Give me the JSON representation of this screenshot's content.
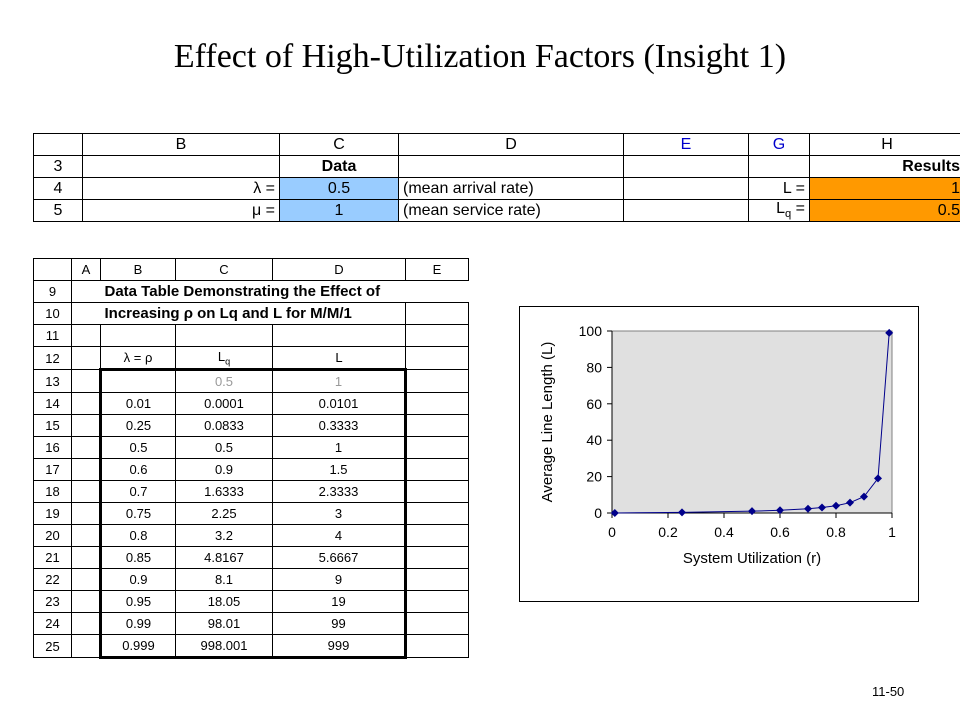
{
  "slide": {
    "title": "Effect of High-Utilization Factors (Insight 1)",
    "number": "11-50"
  },
  "sheet1": {
    "columns": [
      "",
      "B",
      "C",
      "D",
      "E",
      "G",
      "H"
    ],
    "row3": {
      "rn": "3",
      "c": "Data",
      "h": "Results"
    },
    "row4": {
      "rn": "4",
      "b": "λ =",
      "c": "0.5",
      "d": "(mean arrival rate)",
      "g": "L =",
      "h": "1"
    },
    "row5": {
      "rn": "5",
      "b": "μ =",
      "c": "1",
      "d": "(mean service rate)",
      "g_main": "L",
      "g_sub": "q",
      "g_tail": " =",
      "h": "0.5"
    }
  },
  "sheet2": {
    "columns": [
      "",
      "A",
      "B",
      "C",
      "D",
      "E"
    ],
    "row9": {
      "rn": "9",
      "text": "Data Table Demonstrating the Effect of"
    },
    "row10": {
      "rn": "10",
      "text": "Increasing ρ on Lq and L for M/M/1"
    },
    "row11": {
      "rn": "11"
    },
    "row12": {
      "rn": "12",
      "b": "λ = ρ",
      "c_main": "L",
      "c_sub": "q",
      "d": "L"
    },
    "row13": {
      "rn": "13",
      "c": "0.5",
      "d": "1"
    },
    "rows": [
      {
        "rn": "14",
        "b": "0.01",
        "c": "0.0001",
        "d": "0.0101"
      },
      {
        "rn": "15",
        "b": "0.25",
        "c": "0.0833",
        "d": "0.3333"
      },
      {
        "rn": "16",
        "b": "0.5",
        "c": "0.5",
        "d": "1"
      },
      {
        "rn": "17",
        "b": "0.6",
        "c": "0.9",
        "d": "1.5"
      },
      {
        "rn": "18",
        "b": "0.7",
        "c": "1.6333",
        "d": "2.3333"
      },
      {
        "rn": "19",
        "b": "0.75",
        "c": "2.25",
        "d": "3"
      },
      {
        "rn": "20",
        "b": "0.8",
        "c": "3.2",
        "d": "4"
      },
      {
        "rn": "21",
        "b": "0.85",
        "c": "4.8167",
        "d": "5.6667"
      },
      {
        "rn": "22",
        "b": "0.9",
        "c": "8.1",
        "d": "9"
      },
      {
        "rn": "23",
        "b": "0.95",
        "c": "18.05",
        "d": "19"
      },
      {
        "rn": "24",
        "b": "0.99",
        "c": "98.01",
        "d": "99"
      },
      {
        "rn": "25",
        "b": "0.999",
        "c": "998.001",
        "d": "999"
      }
    ]
  },
  "chart_data": {
    "type": "line",
    "title": "",
    "xlabel": "System Utilization (r)",
    "ylabel": "Average Line Length (L)",
    "x": [
      0.01,
      0.25,
      0.5,
      0.6,
      0.7,
      0.75,
      0.8,
      0.85,
      0.9,
      0.95,
      0.99
    ],
    "y": [
      0.0101,
      0.3333,
      1,
      1.5,
      2.3333,
      3,
      4,
      5.6667,
      9,
      19,
      99
    ],
    "xlim": [
      0,
      1
    ],
    "ylim": [
      0,
      100
    ],
    "xticks": [
      "0",
      "0.2",
      "0.4",
      "0.6",
      "0.8",
      "1"
    ],
    "yticks": [
      "0",
      "20",
      "40",
      "60",
      "80",
      "100"
    ],
    "grid": false,
    "legend": "none",
    "colors": {
      "plot_bg": "#e0e0e0",
      "series": "#00008b"
    }
  }
}
